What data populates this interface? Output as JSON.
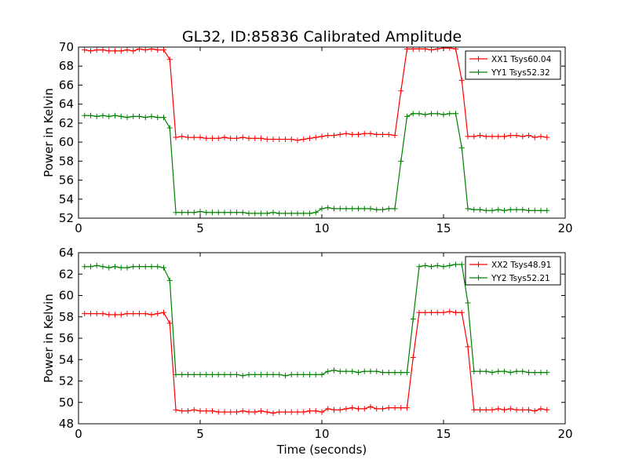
{
  "figure": {
    "title": "GL32, ID:85836 Calibrated Amplitude",
    "xlabel": "Time (seconds)"
  },
  "chart_data": [
    {
      "type": "line",
      "ylabel": "Power in Kelvin",
      "xlim": [
        0,
        20
      ],
      "ylim": [
        52,
        70
      ],
      "xticks": [
        0,
        5,
        10,
        15,
        20
      ],
      "yticks": [
        52,
        54,
        56,
        58,
        60,
        62,
        64,
        66,
        68,
        70
      ],
      "legend_position": "top-right",
      "series": [
        {
          "name": "XX1 Tsys60.04",
          "color": "#ff0000",
          "x": [
            0.25,
            0.5,
            0.75,
            1.0,
            1.25,
            1.5,
            1.75,
            2.0,
            2.25,
            2.5,
            2.75,
            3.0,
            3.25,
            3.5,
            3.75,
            4.0,
            4.25,
            4.5,
            4.75,
            5.0,
            5.25,
            5.5,
            5.75,
            6.0,
            6.25,
            6.5,
            6.75,
            7.0,
            7.25,
            7.5,
            7.75,
            8.0,
            8.25,
            8.5,
            8.75,
            9.0,
            9.25,
            9.5,
            9.75,
            10.0,
            10.25,
            10.5,
            10.75,
            11.0,
            11.25,
            11.5,
            11.75,
            12.0,
            12.25,
            12.5,
            12.75,
            13.0,
            13.25,
            13.5,
            13.75,
            14.0,
            14.25,
            14.5,
            14.75,
            15.0,
            15.25,
            15.5,
            15.75,
            16.0,
            16.25,
            16.5,
            16.75,
            17.0,
            17.25,
            17.5,
            17.75,
            18.0,
            18.25,
            18.5,
            18.75,
            19.0,
            19.25
          ],
          "y": [
            69.7,
            69.6,
            69.7,
            69.7,
            69.6,
            69.6,
            69.6,
            69.7,
            69.6,
            69.8,
            69.7,
            69.8,
            69.7,
            69.7,
            68.7,
            60.5,
            60.6,
            60.5,
            60.5,
            60.5,
            60.4,
            60.4,
            60.4,
            60.5,
            60.4,
            60.4,
            60.5,
            60.4,
            60.4,
            60.4,
            60.3,
            60.3,
            60.3,
            60.3,
            60.3,
            60.2,
            60.3,
            60.4,
            60.5,
            60.6,
            60.7,
            60.7,
            60.8,
            60.9,
            60.8,
            60.8,
            60.9,
            60.9,
            60.8,
            60.8,
            60.8,
            60.7,
            65.4,
            69.8,
            69.8,
            69.8,
            69.8,
            69.7,
            69.8,
            69.9,
            69.9,
            69.8,
            66.5,
            60.6,
            60.6,
            60.7,
            60.6,
            60.6,
            60.6,
            60.6,
            60.7,
            60.7,
            60.6,
            60.7,
            60.5,
            60.6,
            60.5
          ]
        },
        {
          "name": "YY1 Tsys52.32",
          "color": "#008000",
          "x": [
            0.25,
            0.5,
            0.75,
            1.0,
            1.25,
            1.5,
            1.75,
            2.0,
            2.25,
            2.5,
            2.75,
            3.0,
            3.25,
            3.5,
            3.75,
            4.0,
            4.25,
            4.5,
            4.75,
            5.0,
            5.25,
            5.5,
            5.75,
            6.0,
            6.25,
            6.5,
            6.75,
            7.0,
            7.25,
            7.5,
            7.75,
            8.0,
            8.25,
            8.5,
            8.75,
            9.0,
            9.25,
            9.5,
            9.75,
            10.0,
            10.25,
            10.5,
            10.75,
            11.0,
            11.25,
            11.5,
            11.75,
            12.0,
            12.25,
            12.5,
            12.75,
            13.0,
            13.25,
            13.5,
            13.75,
            14.0,
            14.25,
            14.5,
            14.75,
            15.0,
            15.25,
            15.5,
            15.75,
            16.0,
            16.25,
            16.5,
            16.75,
            17.0,
            17.25,
            17.5,
            17.75,
            18.0,
            18.25,
            18.5,
            18.75,
            19.0,
            19.25
          ],
          "y": [
            62.8,
            62.8,
            62.7,
            62.8,
            62.7,
            62.8,
            62.7,
            62.6,
            62.7,
            62.7,
            62.6,
            62.7,
            62.6,
            62.6,
            61.5,
            52.6,
            52.6,
            52.6,
            52.6,
            52.7,
            52.6,
            52.6,
            52.6,
            52.6,
            52.6,
            52.6,
            52.6,
            52.5,
            52.5,
            52.5,
            52.5,
            52.6,
            52.5,
            52.5,
            52.5,
            52.5,
            52.5,
            52.5,
            52.6,
            53.0,
            53.1,
            53.0,
            53.0,
            53.0,
            53.0,
            53.0,
            53.0,
            53.0,
            52.9,
            52.9,
            53.0,
            53.0,
            58.0,
            62.7,
            63.0,
            63.0,
            62.9,
            63.0,
            63.0,
            62.9,
            63.0,
            63.0,
            59.4,
            53.0,
            52.9,
            52.9,
            52.8,
            52.8,
            52.9,
            52.8,
            52.9,
            52.9,
            52.9,
            52.8,
            52.8,
            52.8,
            52.8
          ]
        }
      ]
    },
    {
      "type": "line",
      "ylabel": "Power in Kelvin",
      "xlim": [
        0,
        20
      ],
      "ylim": [
        48,
        64
      ],
      "xticks": [
        0,
        5,
        10,
        15,
        20
      ],
      "yticks": [
        48,
        50,
        52,
        54,
        56,
        58,
        60,
        62,
        64
      ],
      "legend_position": "top-right",
      "series": [
        {
          "name": "XX2 Tsys48.91",
          "color": "#ff0000",
          "x": [
            0.25,
            0.5,
            0.75,
            1.0,
            1.25,
            1.5,
            1.75,
            2.0,
            2.25,
            2.5,
            2.75,
            3.0,
            3.25,
            3.5,
            3.75,
            4.0,
            4.25,
            4.5,
            4.75,
            5.0,
            5.25,
            5.5,
            5.75,
            6.0,
            6.25,
            6.5,
            6.75,
            7.0,
            7.25,
            7.5,
            7.75,
            8.0,
            8.25,
            8.5,
            8.75,
            9.0,
            9.25,
            9.5,
            9.75,
            10.0,
            10.25,
            10.5,
            10.75,
            11.0,
            11.25,
            11.5,
            11.75,
            12.0,
            12.25,
            12.5,
            12.75,
            13.0,
            13.25,
            13.5,
            13.75,
            14.0,
            14.25,
            14.5,
            14.75,
            15.0,
            15.25,
            15.5,
            15.75,
            16.0,
            16.25,
            16.5,
            16.75,
            17.0,
            17.25,
            17.5,
            17.75,
            18.0,
            18.25,
            18.5,
            18.75,
            19.0,
            19.25
          ],
          "y": [
            58.3,
            58.3,
            58.3,
            58.3,
            58.2,
            58.2,
            58.2,
            58.3,
            58.3,
            58.3,
            58.3,
            58.2,
            58.3,
            58.4,
            57.4,
            49.3,
            49.2,
            49.2,
            49.3,
            49.2,
            49.2,
            49.2,
            49.1,
            49.1,
            49.1,
            49.1,
            49.2,
            49.1,
            49.1,
            49.2,
            49.1,
            49.0,
            49.1,
            49.1,
            49.1,
            49.1,
            49.1,
            49.2,
            49.2,
            49.1,
            49.4,
            49.3,
            49.3,
            49.4,
            49.5,
            49.4,
            49.4,
            49.6,
            49.4,
            49.4,
            49.5,
            49.5,
            49.5,
            49.5,
            54.2,
            58.4,
            58.4,
            58.4,
            58.4,
            58.4,
            58.5,
            58.4,
            58.4,
            55.2,
            49.3,
            49.3,
            49.3,
            49.3,
            49.4,
            49.3,
            49.4,
            49.3,
            49.3,
            49.3,
            49.2,
            49.4,
            49.3
          ]
        },
        {
          "name": "YY2 Tsys52.21",
          "color": "#008000",
          "x": [
            0.25,
            0.5,
            0.75,
            1.0,
            1.25,
            1.5,
            1.75,
            2.0,
            2.25,
            2.5,
            2.75,
            3.0,
            3.25,
            3.5,
            3.75,
            4.0,
            4.25,
            4.5,
            4.75,
            5.0,
            5.25,
            5.5,
            5.75,
            6.0,
            6.25,
            6.5,
            6.75,
            7.0,
            7.25,
            7.5,
            7.75,
            8.0,
            8.25,
            8.5,
            8.75,
            9.0,
            9.25,
            9.5,
            9.75,
            10.0,
            10.25,
            10.5,
            10.75,
            11.0,
            11.25,
            11.5,
            11.75,
            12.0,
            12.25,
            12.5,
            12.75,
            13.0,
            13.25,
            13.5,
            13.75,
            14.0,
            14.25,
            14.5,
            14.75,
            15.0,
            15.25,
            15.5,
            15.75,
            16.0,
            16.25,
            16.5,
            16.75,
            17.0,
            17.25,
            17.5,
            17.75,
            18.0,
            18.25,
            18.5,
            18.75,
            19.0,
            19.25
          ],
          "y": [
            62.7,
            62.7,
            62.8,
            62.7,
            62.6,
            62.7,
            62.6,
            62.6,
            62.7,
            62.7,
            62.7,
            62.7,
            62.7,
            62.6,
            61.4,
            52.6,
            52.6,
            52.6,
            52.6,
            52.6,
            52.6,
            52.6,
            52.6,
            52.6,
            52.6,
            52.6,
            52.5,
            52.6,
            52.6,
            52.6,
            52.6,
            52.6,
            52.6,
            52.5,
            52.6,
            52.6,
            52.6,
            52.6,
            52.6,
            52.6,
            52.9,
            53.0,
            52.9,
            52.9,
            52.9,
            52.8,
            52.9,
            52.9,
            52.9,
            52.8,
            52.8,
            52.8,
            52.8,
            52.8,
            57.8,
            62.7,
            62.8,
            62.7,
            62.8,
            62.7,
            62.8,
            62.9,
            62.9,
            59.3,
            52.9,
            52.9,
            52.9,
            52.8,
            52.9,
            52.9,
            52.8,
            52.9,
            52.9,
            52.8,
            52.8,
            52.8,
            52.8
          ]
        }
      ]
    }
  ]
}
